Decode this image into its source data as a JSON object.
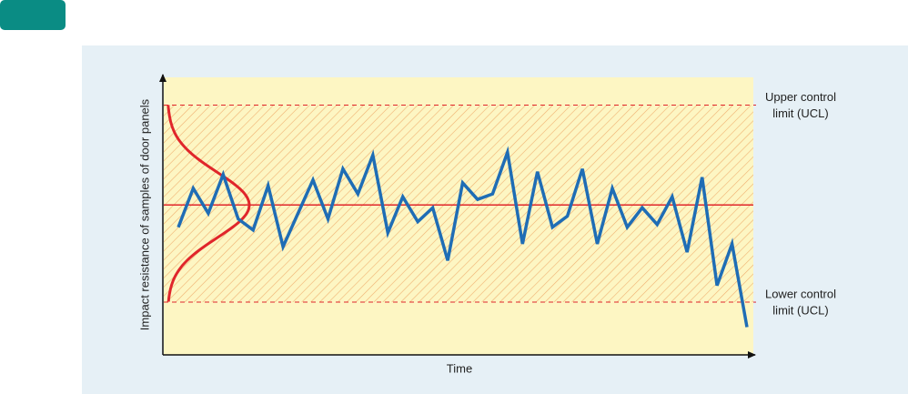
{
  "chart_data": {
    "type": "line",
    "x_label": "Time",
    "y_label": "Impact resistance of samples of door panels",
    "ylim": [
      0,
      100
    ],
    "series": [
      {
        "color": "#1f6db5",
        "values": [
          46,
          60,
          51,
          65,
          49,
          45,
          61,
          39,
          51,
          63,
          49,
          67,
          58,
          72,
          44,
          57,
          48,
          53,
          34,
          62,
          56,
          58,
          73,
          40,
          66,
          46,
          50,
          67,
          40,
          60,
          46,
          53,
          47,
          57,
          37,
          64,
          25,
          40,
          10
        ]
      }
    ],
    "center_line": {
      "value": 54,
      "color": "#e0262b"
    },
    "ucl": {
      "value": 90,
      "label": [
        "Upper control",
        "limit (UCL)"
      ]
    },
    "lcl": {
      "value": 19,
      "label": [
        "Lower control",
        "limit (UCL)"
      ]
    }
  }
}
